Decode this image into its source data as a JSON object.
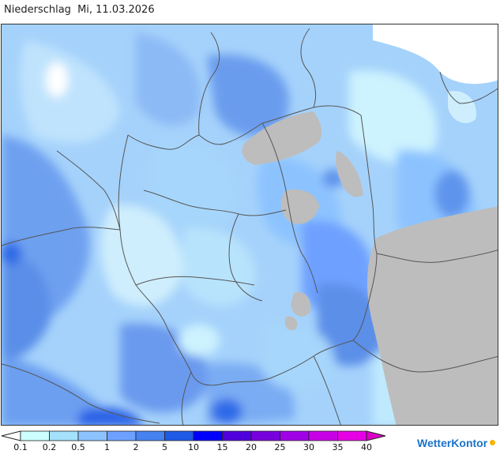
{
  "header": {
    "product": "Niederschlag",
    "date": "Mi, 11.03.2026"
  },
  "legend": {
    "unit_ticks": [
      "0.1",
      "0.2",
      "0.5",
      "1",
      "2",
      "5",
      "10",
      "15",
      "20",
      "25",
      "30",
      "35",
      "40"
    ],
    "colors": [
      "#ffffff",
      "#ccffff",
      "#a5e1fa",
      "#8cc3ff",
      "#6ea0ff",
      "#4682f0",
      "#1e5ae6",
      "#0000ff",
      "#5000dc",
      "#7800dc",
      "#a000e6",
      "#c800e6",
      "#e600e6",
      "#dc00c8"
    ]
  },
  "map": {
    "land_dry_color": "#bdbdbd",
    "sea_color": "#a9d4fb",
    "border_color": "#555555"
  },
  "branding": {
    "logo_text": "WetterKontor"
  }
}
